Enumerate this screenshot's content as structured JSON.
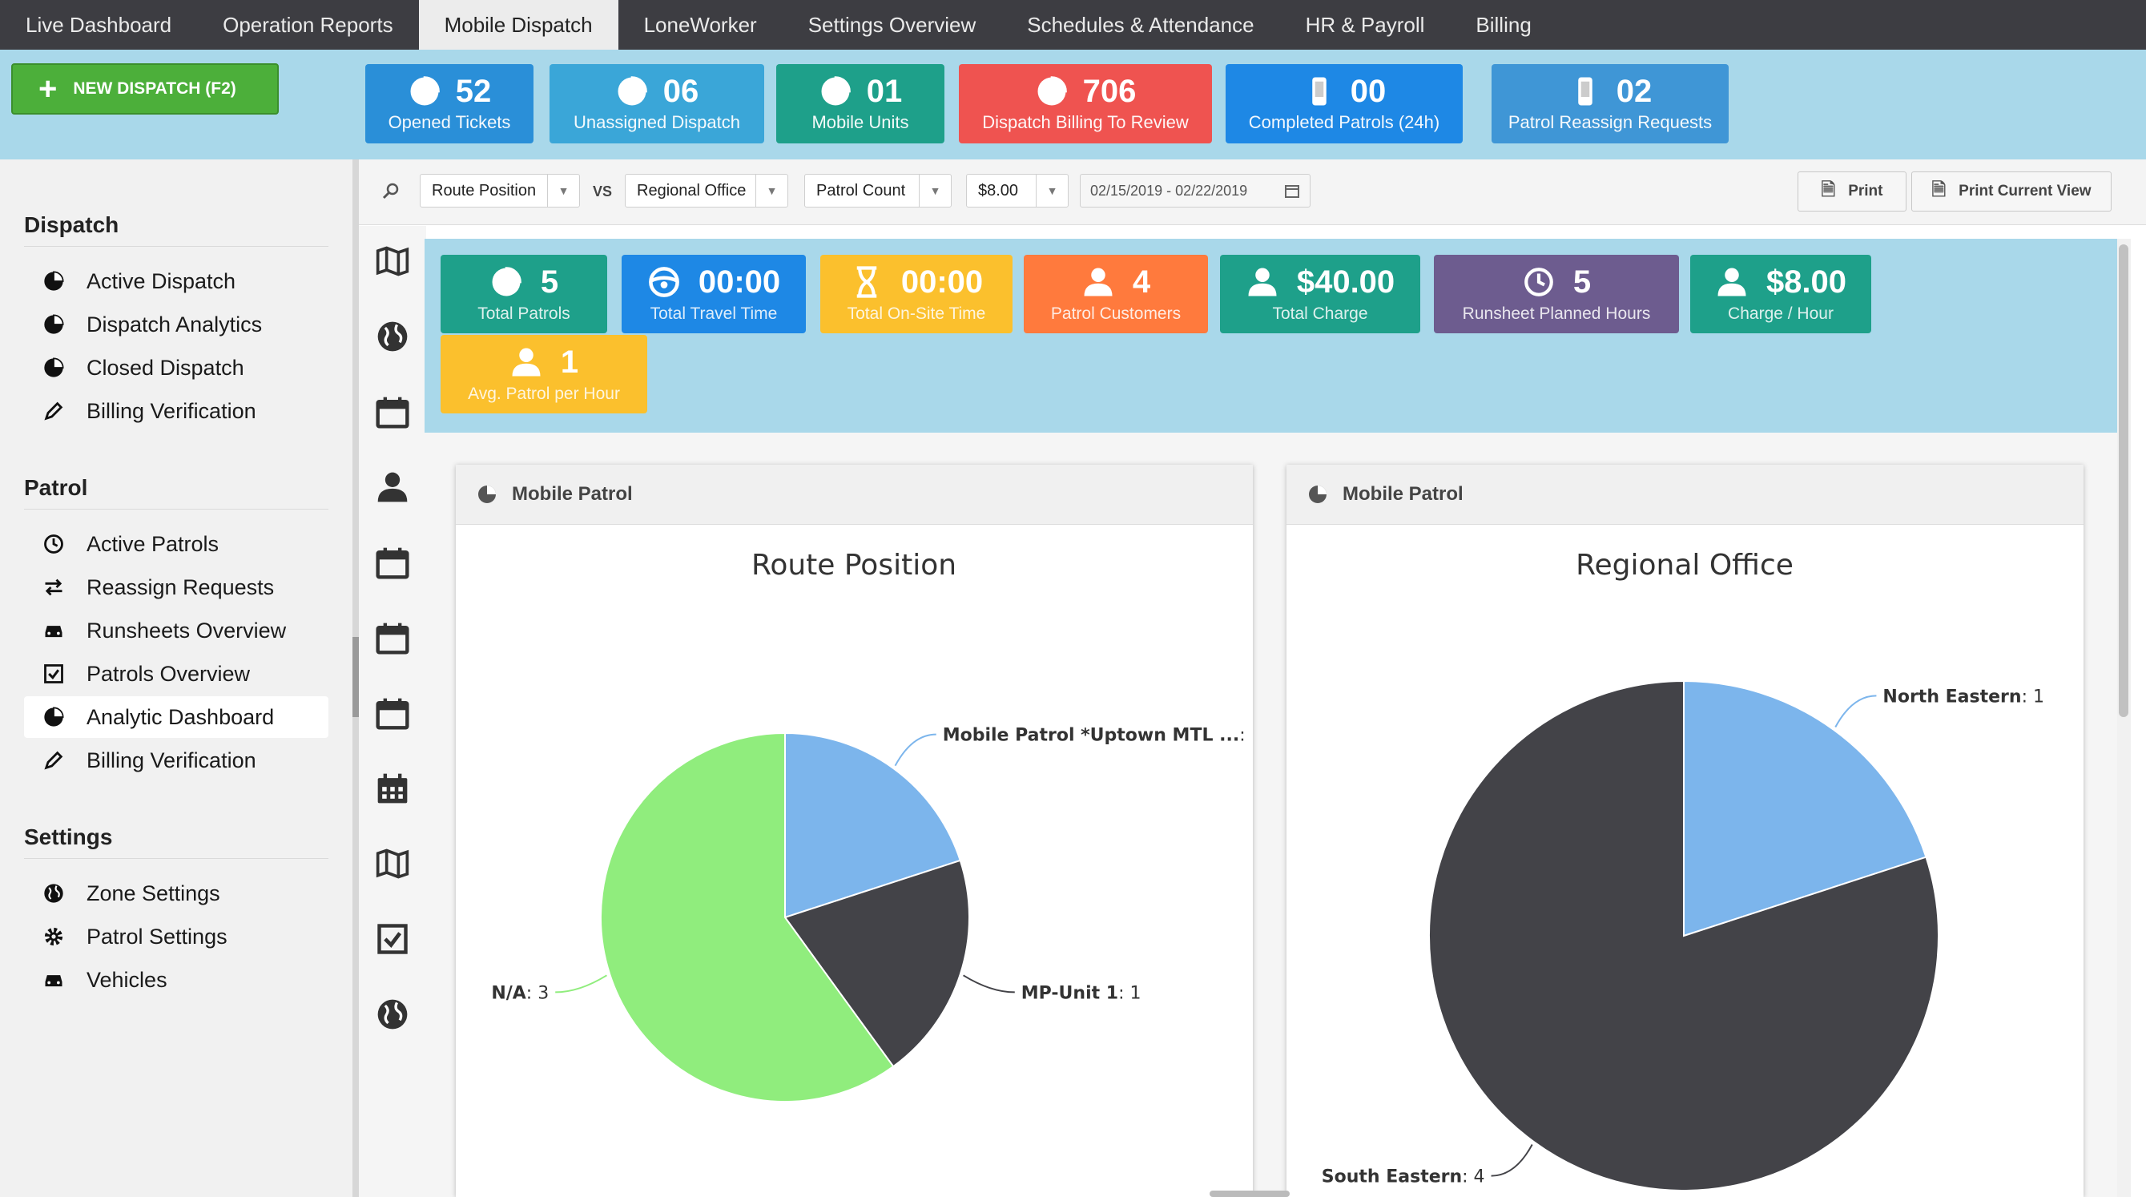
{
  "nav": {
    "tabs": [
      "Live Dashboard",
      "Operation Reports",
      "Mobile Dispatch",
      "LoneWorker",
      "Settings Overview",
      "Schedules & Attendance",
      "HR & Payroll",
      "Billing"
    ],
    "active": "Mobile Dispatch"
  },
  "new_dispatch": {
    "label": "NEW DISPATCH (F2)",
    "icon": "plus-icon",
    "color": "#4caf3a"
  },
  "top_cards": [
    {
      "value": "52",
      "label": "Opened Tickets",
      "icon": "pie-chart-icon",
      "color": "#2a8fd8"
    },
    {
      "value": "06",
      "label": "Unassigned Dispatch",
      "icon": "pie-chart-icon",
      "color": "#3aa6d8"
    },
    {
      "value": "01",
      "label": "Mobile Units",
      "icon": "pie-chart-icon",
      "color": "#1ea08a"
    },
    {
      "value": "706",
      "label": "Dispatch Billing To Review",
      "icon": "pie-chart-icon",
      "color": "#ef5350"
    },
    {
      "value": "00",
      "label": "Completed Patrols (24h)",
      "icon": "mobile-phone-icon",
      "color": "#1e88e5"
    },
    {
      "value": "02",
      "label": "Patrol Reassign Requests",
      "icon": "mobile-phone-icon",
      "color": "#3f96d6"
    }
  ],
  "sidebar": {
    "sections": [
      {
        "title": "Dispatch",
        "items": [
          {
            "label": "Active Dispatch",
            "icon": "pie-chart-icon"
          },
          {
            "label": "Dispatch Analytics",
            "icon": "pie-chart-icon"
          },
          {
            "label": "Closed Dispatch",
            "icon": "pie-chart-icon"
          },
          {
            "label": "Billing Verification",
            "icon": "pencil-icon"
          }
        ]
      },
      {
        "title": "Patrol",
        "items": [
          {
            "label": "Active Patrols",
            "icon": "clock-icon"
          },
          {
            "label": "Reassign Requests",
            "icon": "exchange-icon"
          },
          {
            "label": "Runsheets Overview",
            "icon": "car-icon"
          },
          {
            "label": "Patrols Overview",
            "icon": "checkbox-icon"
          },
          {
            "label": "Analytic Dashboard",
            "icon": "pie-chart-icon",
            "active": true
          },
          {
            "label": "Billing Verification",
            "icon": "pencil-icon"
          }
        ]
      },
      {
        "title": "Settings",
        "items": [
          {
            "label": "Zone Settings",
            "icon": "globe-icon"
          },
          {
            "label": "Patrol Settings",
            "icon": "gear-icon"
          },
          {
            "label": "Vehicles",
            "icon": "car-icon"
          }
        ]
      }
    ]
  },
  "toolbar": {
    "search_icon": "search-icon",
    "select1": "Route Position",
    "vs": "VS",
    "select2": "Regional Office",
    "select3": "Patrol Count",
    "select4": "$8.00",
    "date_range": "02/15/2019 - 02/22/2019",
    "print": "Print",
    "print_current": "Print Current View"
  },
  "icon_column": [
    "map-icon",
    "globe-icon",
    "calendar-icon",
    "user-icon",
    "calendar-icon",
    "calendar-icon",
    "calendar-icon",
    "calendar-grid-icon",
    "map-icon",
    "checkbox-icon",
    "globe-icon"
  ],
  "kpis": [
    {
      "value": "5",
      "label": "Total Patrols",
      "icon": "pie-chart-icon",
      "color": "#1ea08a"
    },
    {
      "value": "00:00",
      "label": "Total Travel Time",
      "icon": "steering-wheel-icon",
      "color": "#1e88e5"
    },
    {
      "value": "00:00",
      "label": "Total On-Site Time",
      "icon": "hourglass-icon",
      "color": "#fbc02d"
    },
    {
      "value": "4",
      "label": "Patrol Customers",
      "icon": "user-icon",
      "color": "#ff7a3d"
    },
    {
      "value": "$40.00",
      "label": "Total Charge",
      "icon": "user-icon",
      "color": "#1ea08a"
    },
    {
      "value": "5",
      "label": "Runsheet Planned Hours",
      "icon": "clock-icon",
      "color": "#6d5c8f"
    },
    {
      "value": "$8.00",
      "label": "Charge / Hour",
      "icon": "user-icon",
      "color": "#1ea08a"
    },
    {
      "value": "1",
      "label": "Avg. Patrol per Hour",
      "icon": "user-icon",
      "color": "#fbc02d"
    }
  ],
  "panels": [
    {
      "header": "Mobile Patrol",
      "icon": "pie-chart-icon"
    },
    {
      "header": "Mobile Patrol",
      "icon": "pie-chart-icon"
    }
  ],
  "chart_data": [
    {
      "type": "pie",
      "title": "Route Position",
      "slices": [
        {
          "name": "Mobile Patrol *Uptown MTL ...",
          "value": 1,
          "color": "#7cb5ec"
        },
        {
          "name": "MP-Unit 1",
          "value": 1,
          "color": "#434348"
        },
        {
          "name": "N/A",
          "value": 3,
          "color": "#90ed7d"
        }
      ]
    },
    {
      "type": "pie",
      "title": "Regional Office",
      "slices": [
        {
          "name": "North Eastern",
          "value": 1,
          "color": "#7cb5ec"
        },
        {
          "name": "South Eastern",
          "value": 4,
          "color": "#434348"
        }
      ]
    }
  ]
}
